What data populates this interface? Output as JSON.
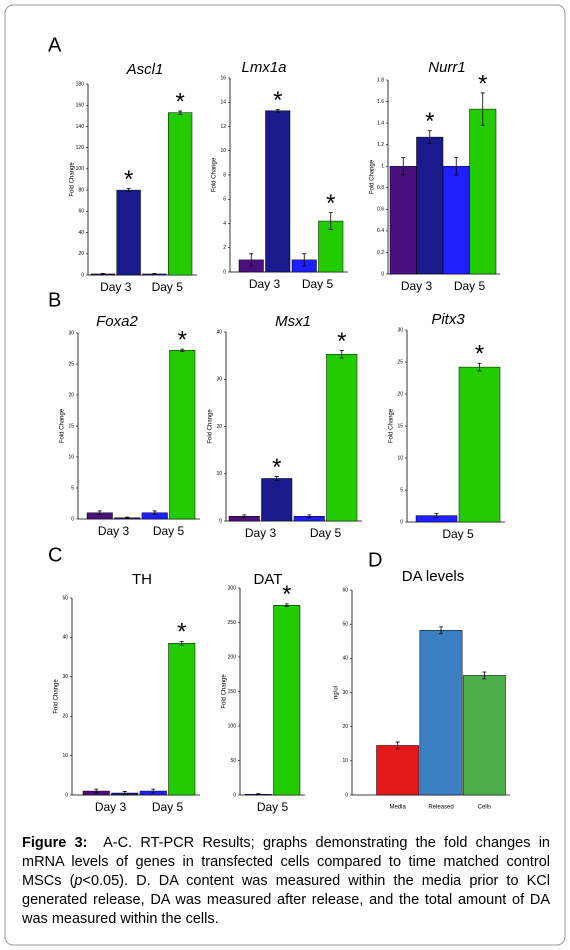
{
  "panel_labels": [
    "A",
    "B",
    "C",
    "D"
  ],
  "chart_data": [
    {
      "type": "bar",
      "title": "Ascl1",
      "ylabel": "Fold Change",
      "categories": [
        null,
        "Day 3",
        null,
        "Day 5"
      ],
      "values": [
        1,
        80,
        1,
        153
      ],
      "errors": [
        0.5,
        1.5,
        0.5,
        1.5
      ],
      "colors": [
        "#4b0f7f",
        "#1a1a8c",
        "#1f1fff",
        "#22cc00"
      ],
      "annotations": [
        null,
        "*",
        null,
        "*"
      ],
      "ylim": [
        0,
        180
      ],
      "yticks": [
        0,
        20,
        40,
        60,
        80,
        100,
        120,
        140,
        160,
        180
      ]
    },
    {
      "type": "bar",
      "title": "Lmx1a",
      "ylabel": "Fold Change",
      "categories": [
        null,
        "Day 3",
        null,
        "Day 5"
      ],
      "values": [
        1,
        13.3,
        1,
        4.2
      ],
      "errors": [
        0.5,
        0.1,
        0.5,
        0.7
      ],
      "colors": [
        "#4b0f7f",
        "#1a1a8c",
        "#1f1fff",
        "#22cc00"
      ],
      "annotations": [
        null,
        "*",
        null,
        "*"
      ],
      "ylim": [
        0,
        16
      ],
      "yticks": [
        0,
        2,
        4,
        6,
        8,
        10,
        12,
        14,
        16
      ]
    },
    {
      "type": "bar",
      "title": "Nurr1",
      "ylabel": "Fold Change",
      "categories": [
        null,
        "Day 3",
        null,
        "Day 5"
      ],
      "values": [
        1.0,
        1.27,
        1.0,
        1.53
      ],
      "errors": [
        0.08,
        0.06,
        0.08,
        0.15
      ],
      "colors": [
        "#4b0f7f",
        "#1a1a8c",
        "#1f1fff",
        "#22cc00"
      ],
      "annotations": [
        null,
        "*",
        null,
        "*"
      ],
      "ylim": [
        0,
        1.8
      ],
      "yticks": [
        0,
        0.2,
        0.4,
        0.6,
        0.8,
        1,
        1.2,
        1.4,
        1.6,
        1.8
      ]
    },
    {
      "type": "bar",
      "title": "Foxa2",
      "ylabel": "Fold Change",
      "categories": [
        null,
        "Day 3",
        null,
        "Day 5"
      ],
      "values": [
        1,
        0.2,
        1,
        27.2
      ],
      "errors": [
        0.3,
        0.1,
        0.3,
        0.2
      ],
      "colors": [
        "#4b0f7f",
        "#1a1a8c",
        "#1f1fff",
        "#22cc00"
      ],
      "annotations": [
        null,
        null,
        null,
        "*"
      ],
      "ylim": [
        0,
        30
      ],
      "yticks": [
        0,
        5,
        10,
        15,
        20,
        25,
        30
      ]
    },
    {
      "type": "bar",
      "title": "Msx1",
      "ylabel": "Fold Change",
      "categories": [
        null,
        "Day 3",
        null,
        "Day 5"
      ],
      "values": [
        1,
        9,
        1,
        35.3
      ],
      "errors": [
        0.3,
        0.4,
        0.3,
        0.8
      ],
      "colors": [
        "#4b0f7f",
        "#1a1a8c",
        "#1f1fff",
        "#22cc00"
      ],
      "annotations": [
        null,
        "*",
        null,
        "*"
      ],
      "ylim": [
        0,
        40
      ],
      "yticks": [
        0,
        10,
        20,
        30,
        40
      ]
    },
    {
      "type": "bar",
      "title": "Pitx3",
      "ylabel": "Fold Change",
      "categories": [
        null,
        "Day 5"
      ],
      "values": [
        1,
        24.2
      ],
      "errors": [
        0.3,
        0.6
      ],
      "colors": [
        "#1f1fff",
        "#22cc00"
      ],
      "annotations": [
        null,
        "*"
      ],
      "ylim": [
        0,
        30
      ],
      "yticks": [
        0,
        5,
        10,
        15,
        20,
        25,
        30
      ]
    },
    {
      "type": "bar",
      "title": "TH",
      "ylabel": "Fold Change",
      "categories": [
        null,
        "Day 3",
        null,
        "Day 5"
      ],
      "values": [
        1,
        0.5,
        1,
        38.5
      ],
      "errors": [
        0.5,
        0.4,
        0.5,
        0.5
      ],
      "colors": [
        "#4b0f7f",
        "#1a1a8c",
        "#1f1fff",
        "#22cc00"
      ],
      "annotations": [
        null,
        null,
        null,
        "*"
      ],
      "ylim": [
        0,
        50
      ],
      "yticks": [
        0,
        10,
        20,
        30,
        40,
        50
      ]
    },
    {
      "type": "bar",
      "title": "DAT",
      "ylabel": "Fold Change",
      "categories": [
        null,
        "Day 5"
      ],
      "values": [
        1,
        275
      ],
      "errors": [
        1,
        2
      ],
      "colors": [
        "#1f1fff",
        "#22cc00"
      ],
      "annotations": [
        null,
        "*"
      ],
      "ylim": [
        0,
        300
      ],
      "yticks": [
        0,
        50,
        100,
        150,
        200,
        250,
        300
      ]
    },
    {
      "type": "bar",
      "title": "DA levels",
      "ylabel": "ng/ul",
      "categories": [
        "Media",
        "Released",
        "Cells"
      ],
      "values": [
        14.5,
        48.2,
        35
      ],
      "errors": [
        1,
        1,
        1
      ],
      "colors": [
        "#e31a1c",
        "#3a7fc1",
        "#4daf4a"
      ],
      "ylim": [
        0,
        60
      ],
      "yticks": [
        0,
        10,
        20,
        30,
        40,
        50,
        60
      ]
    }
  ],
  "caption": {
    "label": "Figure 3:",
    "text_before": "A-C. RT-PCR Results; graphs demonstrating the fold changes in mRNA levels of genes in transfected cells compared to time matched control MSCs (",
    "italic": "p",
    "text_after": "<0.05). D. DA content was measured within the media prior to KCl generated release, DA was measured after release, and the total amount of DA was measured within the cells."
  }
}
